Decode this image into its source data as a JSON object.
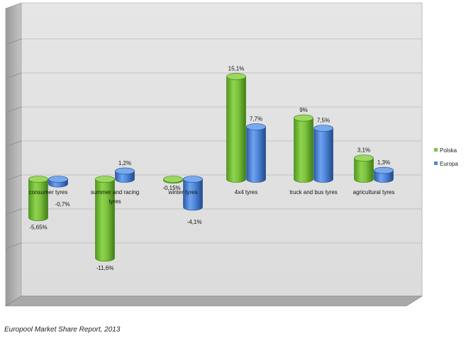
{
  "chart_data": {
    "type": "bar",
    "title": "",
    "xlabel": "",
    "ylabel": "",
    "categories": [
      "consumer tyres",
      "summer and racing tyres",
      "winter tyres",
      "4x4 tyres",
      "truck and bus tyres",
      "agricultural tyres"
    ],
    "category_lines": [
      [
        "consumer tyres"
      ],
      [
        "summer and racing",
        "tyres"
      ],
      [
        "winter tyres"
      ],
      [
        "4x4 tyres"
      ],
      [
        "truck and bus tyres"
      ],
      [
        "agricultural tyres"
      ]
    ],
    "series": [
      {
        "name": "Polska",
        "values": [
          -5.65,
          -11.6,
          -0.15,
          15.1,
          9,
          3.1
        ],
        "labels": [
          "-5,65%",
          "-11,6%",
          "-0,15%",
          "15,1%",
          "9%",
          "3,1%"
        ],
        "color": "#7dc242"
      },
      {
        "name": "Europa",
        "values": [
          -0.7,
          1.2,
          -4.1,
          7.7,
          7.5,
          1.3
        ],
        "labels": [
          "-0,7%",
          "1,2%",
          "-4,1%",
          "7,7%",
          "7,5%",
          "1,3%"
        ],
        "color": "#4f86d9"
      }
    ],
    "ylim": [
      -15,
      20
    ],
    "grid": true,
    "legend_position": "right",
    "style": "3d-cylinder"
  },
  "caption": "Europool Market Share Report, 2013"
}
